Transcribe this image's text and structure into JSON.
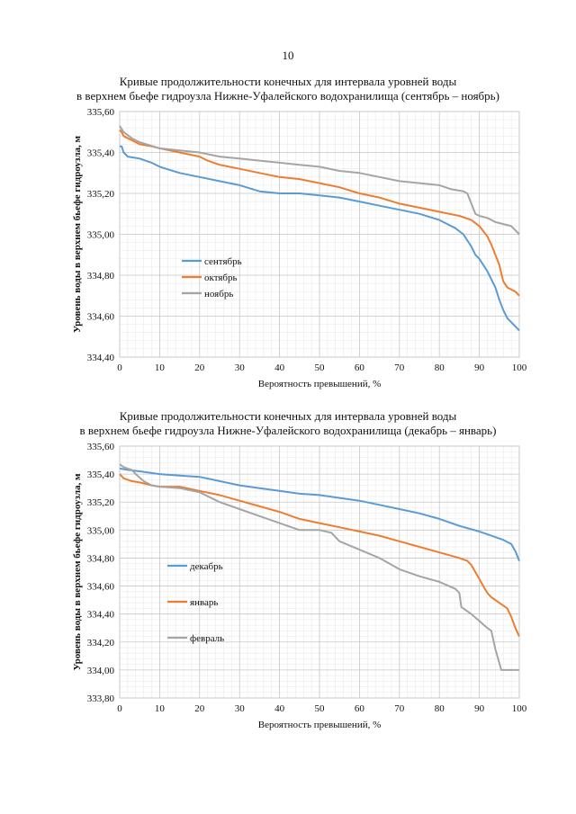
{
  "page_number": "10",
  "chart_data": [
    {
      "type": "line",
      "title_line1": "Кривые продолжительности конечных для интервала уровней воды",
      "title_line2": "в верхнем бьефе гидроузла Нижне-Уфалейского водохранилища (сентябрь – ноябрь)",
      "xlabel": "Вероятность превышений, %",
      "ylabel": "Уровень воды  в верхнем бьефе гидроузла, м",
      "xlim": [
        0,
        100
      ],
      "ylim": [
        334.4,
        335.6
      ],
      "x_ticks": [
        "0",
        "10",
        "20",
        "30",
        "40",
        "50",
        "60",
        "70",
        "80",
        "90",
        "100"
      ],
      "y_ticks": [
        "335,60",
        "335,40",
        "335,20",
        "335,00",
        "334,80",
        "334,60",
        "334,40"
      ],
      "grid": true,
      "legend_position": "left-middle",
      "series": [
        {
          "name": "сентябрь",
          "color": "#5b9bd5",
          "points": [
            [
              0,
              335.43
            ],
            [
              0.5,
              335.43
            ],
            [
              1,
              335.4
            ],
            [
              2,
              335.38
            ],
            [
              5,
              335.37
            ],
            [
              8,
              335.35
            ],
            [
              10,
              335.33
            ],
            [
              15,
              335.3
            ],
            [
              20,
              335.28
            ],
            [
              25,
              335.26
            ],
            [
              30,
              335.24
            ],
            [
              35,
              335.21
            ],
            [
              40,
              335.2
            ],
            [
              45,
              335.2
            ],
            [
              50,
              335.19
            ],
            [
              55,
              335.18
            ],
            [
              60,
              335.16
            ],
            [
              65,
              335.14
            ],
            [
              70,
              335.12
            ],
            [
              75,
              335.1
            ],
            [
              80,
              335.07
            ],
            [
              84,
              335.03
            ],
            [
              86,
              335.0
            ],
            [
              88,
              334.94
            ],
            [
              89,
              334.9
            ],
            [
              90,
              334.88
            ],
            [
              92,
              334.82
            ],
            [
              94,
              334.74
            ],
            [
              95,
              334.68
            ],
            [
              96,
              334.63
            ],
            [
              97,
              334.59
            ],
            [
              98,
              334.57
            ],
            [
              99,
              334.55
            ],
            [
              100,
              334.53
            ]
          ]
        },
        {
          "name": "октябрь",
          "color": "#ed7d31",
          "points": [
            [
              0,
              335.51
            ],
            [
              0.5,
              335.5
            ],
            [
              1,
              335.48
            ],
            [
              3,
              335.46
            ],
            [
              5,
              335.44
            ],
            [
              8,
              335.43
            ],
            [
              10,
              335.42
            ],
            [
              15,
              335.4
            ],
            [
              20,
              335.38
            ],
            [
              22,
              335.36
            ],
            [
              25,
              335.34
            ],
            [
              30,
              335.32
            ],
            [
              35,
              335.3
            ],
            [
              40,
              335.28
            ],
            [
              45,
              335.27
            ],
            [
              50,
              335.25
            ],
            [
              55,
              335.23
            ],
            [
              60,
              335.2
            ],
            [
              65,
              335.18
            ],
            [
              70,
              335.15
            ],
            [
              75,
              335.13
            ],
            [
              80,
              335.11
            ],
            [
              85,
              335.09
            ],
            [
              88,
              335.07
            ],
            [
              90,
              335.04
            ],
            [
              92,
              334.99
            ],
            [
              93,
              334.95
            ],
            [
              94,
              334.9
            ],
            [
              95,
              334.85
            ],
            [
              96,
              334.77
            ],
            [
              97,
              334.74
            ],
            [
              98,
              334.73
            ],
            [
              99,
              334.72
            ],
            [
              100,
              334.7
            ]
          ]
        },
        {
          "name": "ноябрь",
          "color": "#a5a5a5",
          "points": [
            [
              0,
              335.53
            ],
            [
              1,
              335.5
            ],
            [
              3,
              335.47
            ],
            [
              5,
              335.45
            ],
            [
              10,
              335.42
            ],
            [
              15,
              335.41
            ],
            [
              20,
              335.4
            ],
            [
              25,
              335.38
            ],
            [
              30,
              335.37
            ],
            [
              35,
              335.36
            ],
            [
              40,
              335.35
            ],
            [
              45,
              335.34
            ],
            [
              50,
              335.33
            ],
            [
              55,
              335.31
            ],
            [
              60,
              335.3
            ],
            [
              65,
              335.28
            ],
            [
              70,
              335.26
            ],
            [
              75,
              335.25
            ],
            [
              80,
              335.24
            ],
            [
              83,
              335.22
            ],
            [
              86,
              335.21
            ],
            [
              87,
              335.2
            ],
            [
              88,
              335.15
            ],
            [
              89,
              335.1
            ],
            [
              90,
              335.09
            ],
            [
              92,
              335.08
            ],
            [
              94,
              335.06
            ],
            [
              96,
              335.05
            ],
            [
              98,
              335.04
            ],
            [
              99,
              335.02
            ],
            [
              100,
              335.0
            ]
          ]
        }
      ]
    },
    {
      "type": "line",
      "title_line1": "Кривые продолжительности конечных для интервала уровней воды",
      "title_line2": "в верхнем бьефе гидроузла Нижне-Уфалейского водохранилища (декабрь – январь)",
      "xlabel": "Вероятность превышений, %",
      "ylabel": "Уровень воды  в верхнем бьефе гидроузла, м",
      "xlim": [
        0,
        100
      ],
      "ylim": [
        333.8,
        335.6
      ],
      "x_ticks": [
        "0",
        "10",
        "20",
        "30",
        "40",
        "50",
        "60",
        "70",
        "80",
        "90",
        "100"
      ],
      "y_ticks": [
        "335,60",
        "335,40",
        "335,20",
        "335,00",
        "334,80",
        "334,60",
        "334,40",
        "334,20",
        "334,00",
        "333,80"
      ],
      "grid": true,
      "legend_position": "left-middle",
      "series": [
        {
          "name": "декабрь",
          "color": "#5b9bd5",
          "points": [
            [
              0,
              335.44
            ],
            [
              2,
              335.43
            ],
            [
              5,
              335.42
            ],
            [
              10,
              335.4
            ],
            [
              15,
              335.39
            ],
            [
              20,
              335.38
            ],
            [
              25,
              335.35
            ],
            [
              30,
              335.32
            ],
            [
              35,
              335.3
            ],
            [
              40,
              335.28
            ],
            [
              45,
              335.26
            ],
            [
              50,
              335.25
            ],
            [
              55,
              335.23
            ],
            [
              60,
              335.21
            ],
            [
              65,
              335.18
            ],
            [
              70,
              335.15
            ],
            [
              75,
              335.12
            ],
            [
              80,
              335.08
            ],
            [
              85,
              335.03
            ],
            [
              90,
              334.99
            ],
            [
              93,
              334.96
            ],
            [
              96,
              334.93
            ],
            [
              98,
              334.9
            ],
            [
              99,
              334.85
            ],
            [
              100,
              334.78
            ]
          ]
        },
        {
          "name": "январь",
          "color": "#ed7d31",
          "points": [
            [
              0,
              335.4
            ],
            [
              1,
              335.37
            ],
            [
              3,
              335.35
            ],
            [
              5,
              335.34
            ],
            [
              8,
              335.32
            ],
            [
              10,
              335.31
            ],
            [
              15,
              335.31
            ],
            [
              20,
              335.28
            ],
            [
              25,
              335.25
            ],
            [
              30,
              335.21
            ],
            [
              35,
              335.17
            ],
            [
              40,
              335.13
            ],
            [
              45,
              335.08
            ],
            [
              50,
              335.05
            ],
            [
              55,
              335.02
            ],
            [
              60,
              334.99
            ],
            [
              65,
              334.96
            ],
            [
              70,
              334.92
            ],
            [
              75,
              334.88
            ],
            [
              80,
              334.84
            ],
            [
              85,
              334.8
            ],
            [
              87,
              334.78
            ],
            [
              88,
              334.75
            ],
            [
              89,
              334.7
            ],
            [
              90,
              334.65
            ],
            [
              91,
              334.6
            ],
            [
              92,
              334.55
            ],
            [
              93,
              334.52
            ],
            [
              95,
              334.48
            ],
            [
              97,
              334.44
            ],
            [
              98,
              334.38
            ],
            [
              99,
              334.3
            ],
            [
              100,
              334.24
            ]
          ]
        },
        {
          "name": "февраль",
          "color": "#a5a5a5",
          "points": [
            [
              0,
              335.47
            ],
            [
              1,
              335.45
            ],
            [
              2,
              335.44
            ],
            [
              3,
              335.43
            ],
            [
              4,
              335.4
            ],
            [
              6,
              335.35
            ],
            [
              8,
              335.32
            ],
            [
              10,
              335.31
            ],
            [
              15,
              335.3
            ],
            [
              20,
              335.27
            ],
            [
              25,
              335.2
            ],
            [
              30,
              335.15
            ],
            [
              35,
              335.1
            ],
            [
              40,
              335.05
            ],
            [
              45,
              335.0
            ],
            [
              50,
              335.0
            ],
            [
              53,
              334.98
            ],
            [
              55,
              334.92
            ],
            [
              60,
              334.86
            ],
            [
              65,
              334.8
            ],
            [
              70,
              334.72
            ],
            [
              75,
              334.67
            ],
            [
              80,
              334.63
            ],
            [
              84,
              334.58
            ],
            [
              85,
              334.55
            ],
            [
              85.5,
              334.45
            ],
            [
              86,
              334.44
            ],
            [
              88,
              334.4
            ],
            [
              90,
              334.35
            ],
            [
              92,
              334.3
            ],
            [
              93,
              334.28
            ],
            [
              94,
              334.15
            ],
            [
              95,
              334.05
            ],
            [
              95.5,
              334.0
            ],
            [
              100,
              334.0
            ]
          ]
        }
      ]
    }
  ]
}
